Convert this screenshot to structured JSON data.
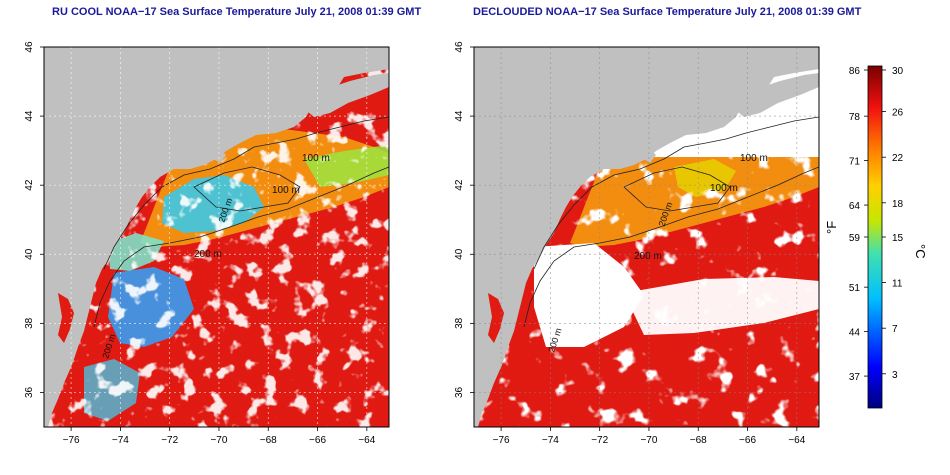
{
  "left_panel": {
    "title": "RU COOL NOAA−17 Sea Surface Temperature July 21, 2008 01:39 GMT",
    "contour_labels": [
      "100 m",
      "100 m",
      "200 m",
      "200 m",
      "200 m"
    ]
  },
  "right_panel": {
    "title": "DECLOUDED NOAA−17 Sea Surface Temperature July 21, 2008 01:39 GMT",
    "contour_labels": [
      "100 m",
      "100 m",
      "200 m",
      "200 m",
      "200 m"
    ]
  },
  "axes": {
    "x_ticks": [
      -76,
      -74,
      -72,
      -70,
      -68,
      -66,
      -64
    ],
    "x_tick_labels": [
      "−76",
      "−74",
      "−72",
      "−70",
      "−68",
      "−66",
      "−64"
    ],
    "y_ticks": [
      36,
      38,
      40,
      42,
      44,
      46
    ],
    "y_tick_labels": [
      "36",
      "38",
      "40",
      "42",
      "44",
      "46"
    ],
    "xlim": [
      -77.1,
      -63.1
    ],
    "ylim": [
      35,
      46
    ]
  },
  "colorbar": {
    "celsius_label": "°C",
    "fahrenheit_label": "°F",
    "celsius_range": [
      0,
      30
    ],
    "celsius_ticks": [
      "30",
      "26",
      "22",
      "18",
      "15",
      "11",
      "7",
      "3"
    ],
    "celsius_tick_values": [
      30,
      26,
      22,
      18,
      15,
      11,
      7,
      3
    ],
    "fahrenheit_ticks": [
      "86",
      "78",
      "71",
      "64",
      "59",
      "51",
      "44",
      "37"
    ],
    "fahrenheit_tick_values": [
      30,
      25.6,
      21.7,
      17.8,
      15,
      10.6,
      6.7,
      2.8
    ]
  },
  "colors": {
    "land": "#c0c0c0",
    "cloud": "#ffffff",
    "title": "#1a1a9a",
    "warm": "#e11a12",
    "shelf": "#f2a20c"
  }
}
